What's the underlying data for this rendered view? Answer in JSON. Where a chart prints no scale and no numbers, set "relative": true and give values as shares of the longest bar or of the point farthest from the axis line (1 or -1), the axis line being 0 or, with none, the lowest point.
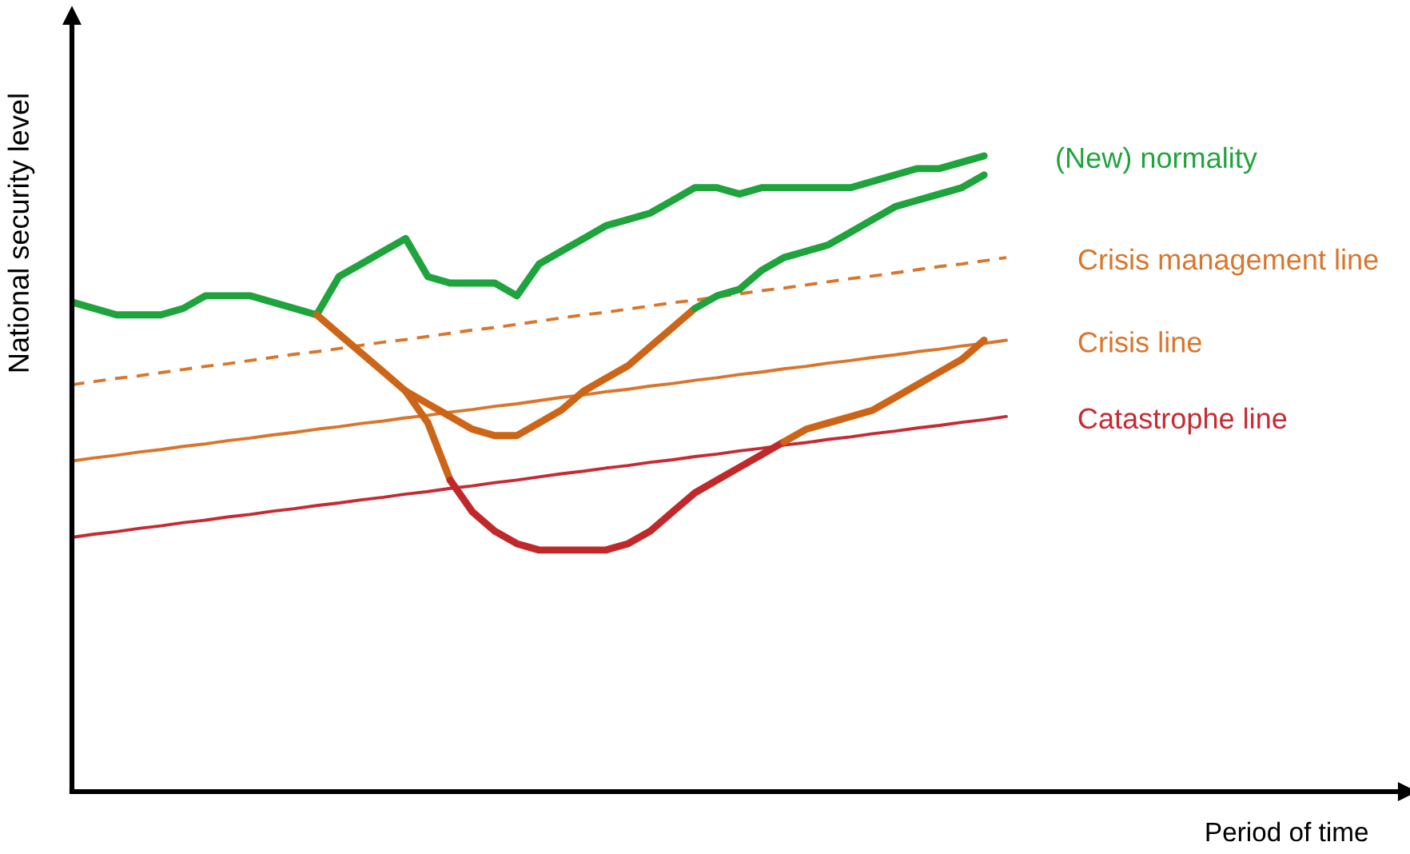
{
  "chart_data": {
    "type": "line",
    "relative": true,
    "annotations": [
      "Period of time"
    ],
    "ylabel": "National security level",
    "legend": false,
    "marker": "none",
    "categories": [
      null,
      null,
      null,
      null,
      null,
      null,
      null,
      null,
      null,
      null,
      null,
      null,
      null,
      null,
      null,
      null,
      null,
      null,
      null,
      null,
      null,
      null,
      null,
      null,
      null,
      null,
      null,
      null,
      null,
      null,
      null,
      null,
      null,
      null,
      null,
      null,
      null,
      null,
      null,
      null,
      null,
      null,
      null
    ],
    "series": [
      {
        "name": "(New) normality",
        "color": "#1fa33c",
        "values": [
          0.77,
          0.76,
          0.75,
          0.75,
          0.75,
          0.76,
          0.78,
          0.78,
          0.78,
          0.77,
          0.76,
          0.75,
          0.81,
          0.83,
          0.85,
          0.87,
          0.81,
          0.8,
          0.8,
          0.8,
          0.78,
          0.83,
          0.85,
          0.87,
          0.89,
          0.9,
          0.91,
          0.93,
          0.95,
          0.95,
          0.94,
          0.95,
          0.95,
          0.95,
          0.95,
          0.95,
          0.96,
          0.97,
          0.98,
          0.98,
          0.99,
          1,
          null
        ]
      },
      {
        "name": "Crisis management line",
        "color": "#d9752c",
        "line_style": "dashed",
        "values": [
          0.64,
          0.645,
          0.65,
          0.654,
          0.659,
          0.664,
          0.669,
          0.673,
          0.678,
          0.683,
          0.688,
          0.692,
          0.697,
          0.702,
          0.707,
          0.711,
          0.716,
          0.721,
          0.726,
          0.73,
          0.735,
          0.74,
          0.745,
          0.75,
          0.754,
          0.759,
          0.764,
          0.769,
          0.773,
          0.778,
          0.783,
          0.788,
          0.792,
          0.797,
          0.802,
          0.807,
          0.811,
          0.816,
          0.821,
          0.826,
          0.83,
          0.835,
          0.84
        ]
      },
      {
        "name": "Crisis line",
        "color": "#d9752c",
        "values": [
          0.52,
          0.525,
          0.529,
          0.534,
          0.538,
          0.543,
          0.547,
          0.552,
          0.556,
          0.561,
          0.565,
          0.57,
          0.574,
          0.579,
          0.583,
          0.588,
          0.592,
          0.597,
          0.601,
          0.606,
          0.61,
          0.615,
          0.62,
          0.624,
          0.629,
          0.633,
          0.638,
          0.642,
          0.647,
          0.651,
          0.656,
          0.66,
          0.665,
          0.669,
          0.674,
          0.678,
          0.683,
          0.687,
          0.692,
          0.696,
          0.701,
          0.705,
          0.71
        ]
      },
      {
        "name": "Catastrophe line",
        "color": "#c62a32",
        "values": [
          0.4,
          0.405,
          0.409,
          0.414,
          0.418,
          0.423,
          0.427,
          0.432,
          0.436,
          0.441,
          0.445,
          0.45,
          0.454,
          0.459,
          0.463,
          0.468,
          0.472,
          0.477,
          0.481,
          0.486,
          0.49,
          0.495,
          0.5,
          0.504,
          0.509,
          0.513,
          0.518,
          0.522,
          0.527,
          0.531,
          0.536,
          0.54,
          0.545,
          0.549,
          0.554,
          0.558,
          0.563,
          0.567,
          0.572,
          0.576,
          0.581,
          0.585,
          0.59
        ]
      },
      {
        "color": "#cc6518",
        "values": [
          null,
          null,
          null,
          null,
          null,
          null,
          null,
          null,
          null,
          null,
          null,
          0.75,
          0.72,
          0.69,
          0.66,
          0.63,
          0.61,
          0.59,
          0.57,
          0.56,
          0.56,
          0.58,
          0.6,
          0.63,
          0.65,
          0.67,
          0.7,
          0.73,
          0.76,
          null,
          null,
          null,
          null,
          null,
          null,
          null,
          null,
          null,
          null,
          null,
          null,
          null,
          null
        ]
      },
      {
        "color": "#cc6518",
        "values": [
          null,
          null,
          null,
          null,
          null,
          null,
          null,
          null,
          null,
          null,
          null,
          null,
          null,
          null,
          null,
          0.63,
          0.58,
          0.49,
          null,
          null,
          null,
          null,
          null,
          null,
          null,
          null,
          null,
          null,
          null,
          null,
          null,
          null,
          null,
          null,
          null,
          null,
          null,
          null,
          null,
          null,
          null,
          null,
          null
        ]
      },
      {
        "color": "#c0282a",
        "values": [
          null,
          null,
          null,
          null,
          null,
          null,
          null,
          null,
          null,
          null,
          null,
          null,
          null,
          null,
          null,
          null,
          null,
          0.49,
          0.44,
          0.41,
          0.39,
          0.38,
          0.38,
          0.38,
          0.38,
          0.39,
          0.41,
          0.44,
          0.47,
          0.49,
          0.51,
          0.53,
          0.55,
          null,
          null,
          null,
          null,
          null,
          null,
          null,
          null,
          null,
          null
        ]
      },
      {
        "color": "#cc6518",
        "values": [
          null,
          null,
          null,
          null,
          null,
          null,
          null,
          null,
          null,
          null,
          null,
          null,
          null,
          null,
          null,
          null,
          null,
          null,
          null,
          null,
          null,
          null,
          null,
          null,
          null,
          null,
          null,
          null,
          null,
          null,
          null,
          null,
          0.55,
          0.57,
          0.58,
          0.59,
          0.6,
          0.62,
          0.64,
          0.66,
          0.68,
          0.71,
          null
        ]
      },
      {
        "color": "#1fa33c",
        "values": [
          null,
          null,
          null,
          null,
          null,
          null,
          null,
          null,
          null,
          null,
          null,
          null,
          null,
          null,
          null,
          null,
          null,
          null,
          null,
          null,
          null,
          null,
          null,
          null,
          null,
          null,
          null,
          null,
          0.76,
          0.78,
          0.79,
          0.82,
          0.84,
          0.85,
          0.86,
          0.88,
          0.9,
          0.92,
          0.93,
          0.94,
          0.95,
          0.97,
          null
        ]
      }
    ]
  }
}
